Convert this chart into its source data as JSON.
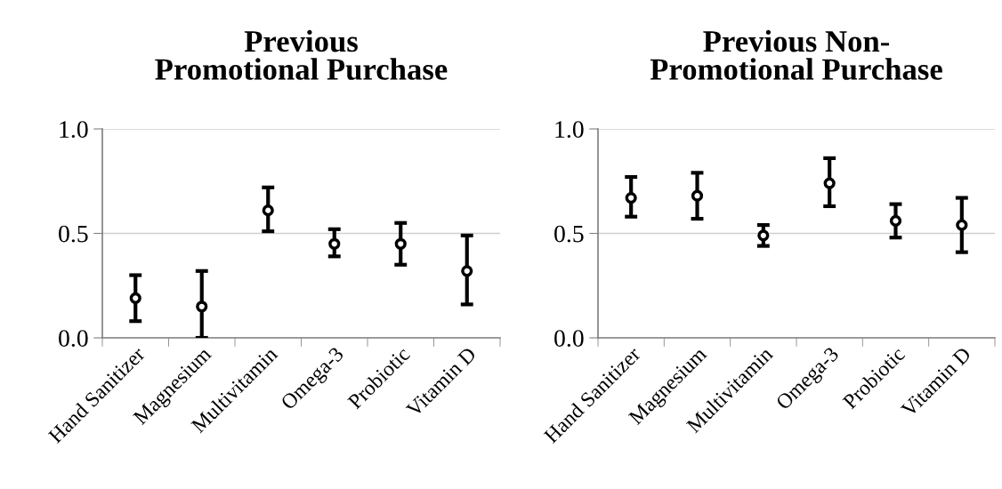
{
  "chart_data": [
    {
      "type": "scatter",
      "title": "Previous\nPromotional Purchase",
      "categories": [
        "Hand Sanitizer",
        "Magnesium",
        "Multivitamin",
        "Omega-3",
        "Probiotic",
        "Vitamin D"
      ],
      "series": [
        {
          "color": "#000000",
          "values": [
            0.19,
            0.15,
            0.61,
            0.45,
            0.45,
            0.32
          ],
          "errors": [
            [
              0.08,
              0.3
            ],
            [
              0.0,
              0.32
            ],
            [
              0.51,
              0.72
            ],
            [
              0.39,
              0.52
            ],
            [
              0.35,
              0.55
            ],
            [
              0.16,
              0.49
            ]
          ]
        }
      ],
      "ylim": [
        0,
        1
      ],
      "yticks": [
        {
          "value": 0,
          "label": "0.0"
        },
        {
          "value": 0.5,
          "label": "0.5"
        },
        {
          "value": 1,
          "label": "1.0"
        }
      ],
      "grid": "y",
      "marker": "circle"
    },
    {
      "type": "scatter",
      "title": "Previous Non-\nPromotional Purchase",
      "categories": [
        "Hand Sanitizer",
        "Magnesium",
        "Multivitamin",
        "Omega-3",
        "Probiotic",
        "Vitamin D"
      ],
      "series": [
        {
          "color": "#000000",
          "values": [
            0.67,
            0.68,
            0.49,
            0.74,
            0.56,
            0.54
          ],
          "errors": [
            [
              0.58,
              0.77
            ],
            [
              0.57,
              0.79
            ],
            [
              0.44,
              0.54
            ],
            [
              0.63,
              0.86
            ],
            [
              0.48,
              0.64
            ],
            [
              0.41,
              0.67
            ]
          ]
        }
      ],
      "ylim": [
        0,
        1
      ],
      "yticks": [
        {
          "value": 0,
          "label": "0.0"
        },
        {
          "value": 0.5,
          "label": "0.5"
        },
        {
          "value": 1,
          "label": "1.0"
        }
      ],
      "grid": "y",
      "marker": "circle"
    }
  ]
}
